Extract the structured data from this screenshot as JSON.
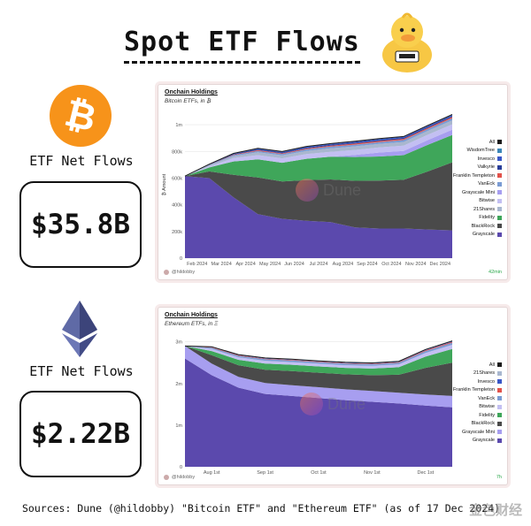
{
  "title": "Spot ETF Flows",
  "btc": {
    "label": "ETF Net Flows",
    "value": "$35.8B"
  },
  "eth": {
    "label": "ETF Net Flows",
    "value": "$2.22B"
  },
  "sources": "Sources: Dune (@hildobby) \"Bitcoin ETF\" and \"Ethereum ETF\" (as of 17 Dec 2024)",
  "corner_watermark": "金色财经",
  "colors": {
    "grayscale": "#5b49ad",
    "blackrock": "#4a4a4a",
    "fidelity": "#3fa65a",
    "grayscale_mini": "#a79ef0",
    "bitwise": "#c3bff2",
    "shares21": "#a9b7cf",
    "vaneck": "#7b9bd3",
    "franklin": "#e2524b",
    "valkyrie": "#2a3e99",
    "invesco": "#3a57c7",
    "wisdomtree": "#3c86b8",
    "all": "#1b1b1b",
    "orange_band": "#f2b33d"
  },
  "chart_data": [
    {
      "type": "area",
      "panel_title": "Onchain Holdings",
      "subtitle": "Bitcoin ETFs, in ₿",
      "ylabel": "₿ Amount",
      "watermark": "Dune",
      "author": "@hildobby",
      "refresh": "42min",
      "ylim": [
        0,
        1100000
      ],
      "yticks": [
        0,
        200000,
        400000,
        600000,
        800000,
        1000000
      ],
      "ytick_labels": [
        "0",
        "200k",
        "400k",
        "600k",
        "800k",
        "1m"
      ],
      "x": [
        "Jan 2024",
        "Feb 2024",
        "Mar 2024",
        "Apr 2024",
        "May 2024",
        "Jun 2024",
        "Jul 2024",
        "Aug 2024",
        "Sep 2024",
        "Oct 2024",
        "Nov 2024",
        "Dec 2024"
      ],
      "x_tick_labels": [
        "Feb 2024",
        "Mar 2024",
        "Apr 2024",
        "May 2024",
        "Jun 2024",
        "Jul 2024",
        "Aug 2024",
        "Sep 2024",
        "Oct 2024",
        "Nov 2024",
        "Dec 2024"
      ],
      "legend": [
        "All",
        "WisdomTree",
        "Invesco",
        "Valkyrie",
        "Franklin Templeton",
        "VanEck",
        "Grayscale Mini",
        "Bitwise",
        "21Shares",
        "Fidelity",
        "BlackRock",
        "Grayscale"
      ],
      "series": [
        {
          "name": "Grayscale",
          "color_key": "grayscale",
          "values": [
            615000,
            600000,
            455000,
            330000,
            295000,
            280000,
            270000,
            230000,
            222000,
            222000,
            215000,
            208000
          ]
        },
        {
          "name": "BlackRock",
          "color_key": "blackrock",
          "values": [
            0,
            50000,
            170000,
            275000,
            280000,
            305000,
            320000,
            350000,
            360000,
            365000,
            435000,
            510000
          ]
        },
        {
          "name": "Fidelity",
          "color_key": "fidelity",
          "values": [
            0,
            30000,
            100000,
            135000,
            140000,
            160000,
            170000,
            178000,
            180000,
            185000,
            200000,
            205000
          ]
        },
        {
          "name": "Grayscale Mini",
          "color_key": "grayscale_mini",
          "values": [
            0,
            0,
            0,
            0,
            0,
            0,
            0,
            15000,
            30000,
            32000,
            35000,
            40000
          ]
        },
        {
          "name": "Bitwise",
          "color_key": "bitwise",
          "values": [
            0,
            8000,
            25000,
            32000,
            33000,
            35000,
            37000,
            38000,
            38000,
            39000,
            40000,
            40000
          ]
        },
        {
          "name": "21Shares",
          "color_key": "shares21",
          "values": [
            0,
            8000,
            15000,
            22000,
            22000,
            24000,
            26000,
            27000,
            27000,
            28000,
            29000,
            30000
          ]
        },
        {
          "name": "VanEck",
          "color_key": "vaneck",
          "values": [
            0,
            3000,
            7000,
            10000,
            10000,
            12000,
            13000,
            13000,
            13000,
            14000,
            14000,
            15000
          ]
        },
        {
          "name": "Franklin Templeton",
          "color_key": "franklin",
          "values": [
            0,
            1000,
            3000,
            5000,
            5000,
            6000,
            7000,
            8000,
            8000,
            9000,
            9000,
            10000
          ]
        },
        {
          "name": "Valkyrie",
          "color_key": "valkyrie",
          "values": [
            0,
            2000,
            4000,
            6000,
            6000,
            7000,
            7000,
            8000,
            8000,
            8000,
            8000,
            8000
          ]
        },
        {
          "name": "Invesco",
          "color_key": "invesco",
          "values": [
            0,
            2000,
            5000,
            6000,
            6000,
            6000,
            6000,
            7000,
            7000,
            7000,
            7000,
            7000
          ]
        },
        {
          "name": "WisdomTree",
          "color_key": "wisdomtree",
          "values": [
            0,
            500,
            1000,
            2000,
            2000,
            2500,
            3000,
            3000,
            3000,
            3000,
            3000,
            3500
          ]
        }
      ]
    },
    {
      "type": "area",
      "panel_title": "Onchain Holdings",
      "subtitle": "Ethereum ETFs, in Ξ",
      "ylabel": "",
      "watermark": "Dune",
      "author": "@hildobby",
      "refresh": "7h",
      "ylim": [
        0,
        3100000
      ],
      "yticks": [
        0,
        1000000,
        2000000,
        3000000
      ],
      "ytick_labels": [
        "0",
        "1m",
        "2m",
        "3m"
      ],
      "x": [
        "Jul 23",
        "Aug 1st",
        "Aug 16",
        "Sep 1st",
        "Sep 16",
        "Oct 1st",
        "Oct 16",
        "Nov 1st",
        "Nov 16",
        "Dec 1st",
        "Dec 17"
      ],
      "x_tick_labels": [
        "Aug 1st",
        "Sep 1st",
        "Oct 1st",
        "Nov 1st",
        "Dec 1st"
      ],
      "legend": [
        "All",
        "21Shares",
        "Invesco",
        "Franklin Templeton",
        "VanEck",
        "Bitwise",
        "Fidelity",
        "BlackRock",
        "Grayscale Mini",
        "Grayscale"
      ],
      "series": [
        {
          "name": "Grayscale",
          "color_key": "grayscale",
          "values": [
            2600000,
            2200000,
            1900000,
            1750000,
            1700000,
            1650000,
            1600000,
            1560000,
            1520000,
            1470000,
            1430000
          ]
        },
        {
          "name": "Grayscale Mini",
          "color_key": "grayscale_mini",
          "values": [
            300000,
            280000,
            260000,
            260000,
            260000,
            260000,
            260000,
            260000,
            260000,
            265000,
            270000
          ]
        },
        {
          "name": "BlackRock",
          "color_key": "blackrock",
          "values": [
            0,
            200000,
            280000,
            320000,
            340000,
            350000,
            360000,
            380000,
            430000,
            640000,
            800000
          ]
        },
        {
          "name": "Fidelity",
          "color_key": "fidelity",
          "values": [
            0,
            100000,
            130000,
            150000,
            150000,
            150000,
            155000,
            160000,
            180000,
            270000,
            330000
          ]
        },
        {
          "name": "Bitwise",
          "color_key": "bitwise",
          "values": [
            0,
            50000,
            60000,
            65000,
            65000,
            65000,
            65000,
            65000,
            70000,
            90000,
            100000
          ]
        },
        {
          "name": "VanEck",
          "color_key": "vaneck",
          "values": [
            0,
            30000,
            35000,
            38000,
            38000,
            38000,
            38000,
            38000,
            40000,
            45000,
            50000
          ]
        },
        {
          "name": "Franklin Templeton",
          "color_key": "franklin",
          "values": [
            0,
            10000,
            12000,
            13000,
            13000,
            13000,
            13000,
            13000,
            14000,
            16000,
            18000
          ]
        },
        {
          "name": "Invesco",
          "color_key": "invesco",
          "values": [
            0,
            8000,
            10000,
            10000,
            10000,
            10000,
            10000,
            10000,
            11000,
            13000,
            15000
          ]
        },
        {
          "name": "21Shares",
          "color_key": "shares21",
          "values": [
            0,
            6000,
            7000,
            8000,
            8000,
            8000,
            8000,
            8000,
            8000,
            9000,
            10000
          ]
        }
      ]
    }
  ]
}
